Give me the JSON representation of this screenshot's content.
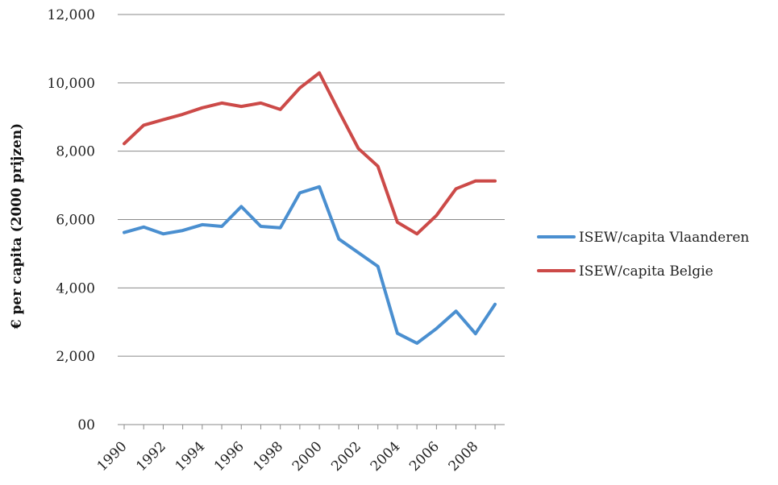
{
  "chart_data": {
    "type": "line",
    "ylabel": "€ per capita (2000 prijzen)",
    "xlabel": "",
    "ylim": [
      0,
      12000
    ],
    "yticks": [
      0,
      2000,
      4000,
      6000,
      8000,
      10000,
      12000
    ],
    "ytick_labels": [
      "00",
      "2,000",
      "4,000",
      "6,000",
      "8,000",
      "10,000",
      "12,000"
    ],
    "xlim": [
      1990,
      2009
    ],
    "xticks": [
      1990,
      1992,
      1994,
      1996,
      1998,
      2000,
      2002,
      2004,
      2006,
      2008
    ],
    "xtick_labels": [
      "1990",
      "1992",
      "1994",
      "1996",
      "1998",
      "2000",
      "2002",
      "2004",
      "2006",
      "2008"
    ],
    "grid": true,
    "legend_position": "right",
    "x": [
      1990,
      1991,
      1992,
      1993,
      1994,
      1995,
      1996,
      1997,
      1998,
      1999,
      2000,
      2001,
      2002,
      2003,
      2004,
      2005,
      2006,
      2007,
      2008,
      2009
    ],
    "series": [
      {
        "name": "ISEW/capita Vlaanderen",
        "color": "#4a8fd0",
        "values": [
          5620,
          5780,
          5580,
          5680,
          5850,
          5800,
          6380,
          5800,
          5760,
          6780,
          6960,
          5430,
          5030,
          4630,
          2670,
          2380,
          2810,
          3320,
          2660,
          3520
        ]
      },
      {
        "name": "ISEW/capita Belgie",
        "color": "#cc4a48",
        "values": [
          8220,
          8760,
          8920,
          9080,
          9270,
          9410,
          9310,
          9410,
          9220,
          9850,
          10290,
          9170,
          8080,
          7560,
          5920,
          5580,
          6120,
          6900,
          7130,
          7130
        ]
      }
    ]
  }
}
